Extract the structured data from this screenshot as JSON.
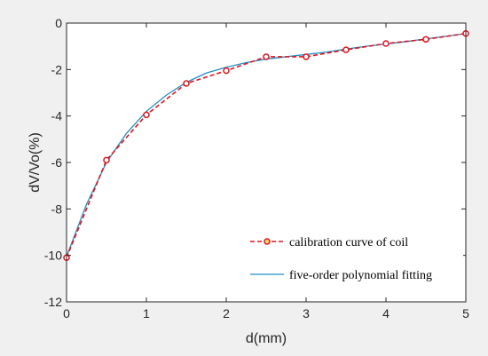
{
  "chart_data": {
    "type": "line",
    "title": "",
    "xlabel": "d(mm)",
    "ylabel": "dV/Vo(%)",
    "xlim": [
      0,
      5
    ],
    "ylim": [
      -12,
      0
    ],
    "xticks": [
      0,
      1,
      2,
      3,
      4,
      5
    ],
    "yticks": [
      -12,
      -10,
      -8,
      -6,
      -4,
      -2,
      0
    ],
    "grid": false,
    "legend_position": "bottom-right",
    "series": [
      {
        "name": "calibration curve of coil",
        "style": "dashed-with-circle-markers",
        "color": "#e3121b",
        "x": [
          0,
          0.5,
          1,
          1.5,
          2,
          2.5,
          3,
          3.5,
          4,
          4.5,
          5
        ],
        "y": [
          -10.1,
          -5.9,
          -3.95,
          -2.6,
          -2.05,
          -1.45,
          -1.45,
          -1.15,
          -0.88,
          -0.7,
          -0.45
        ]
      },
      {
        "name": "five-order polynomial fitting",
        "style": "solid",
        "color": "#1f8fc8",
        "x": [
          0,
          0.25,
          0.5,
          0.75,
          1,
          1.25,
          1.5,
          1.75,
          2,
          2.25,
          2.5,
          2.75,
          3,
          3.25,
          3.5,
          3.75,
          4,
          4.25,
          4.5,
          4.75,
          5
        ],
        "y": [
          -10.05,
          -7.8,
          -6.0,
          -4.75,
          -3.8,
          -3.1,
          -2.55,
          -2.15,
          -1.9,
          -1.7,
          -1.55,
          -1.45,
          -1.35,
          -1.25,
          -1.12,
          -1.0,
          -0.9,
          -0.8,
          -0.68,
          -0.57,
          -0.45
        ]
      }
    ]
  }
}
